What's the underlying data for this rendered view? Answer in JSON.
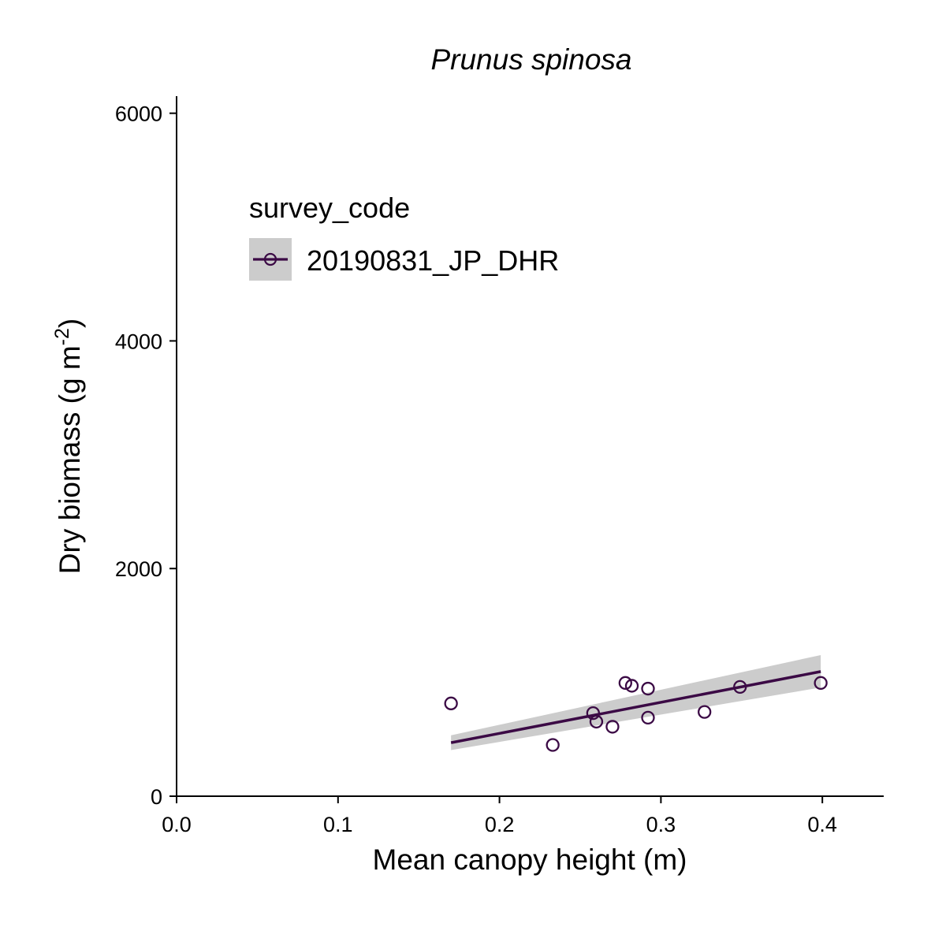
{
  "chart_data": {
    "type": "scatter",
    "title": "Prunus spinosa",
    "xlabel": "Mean canopy height (m)",
    "ylabel_main": "Dry biomass (g m",
    "ylabel_sup": "-2",
    "ylabel_close": ")",
    "xlim": [
      0.0,
      0.438
    ],
    "ylim": [
      0,
      6150
    ],
    "x_ticks": [
      0.0,
      0.1,
      0.2,
      0.3,
      0.4
    ],
    "x_tick_labels": [
      "0.0",
      "0.1",
      "0.2",
      "0.3",
      "0.4"
    ],
    "y_ticks": [
      0,
      2000,
      4000,
      6000
    ],
    "y_tick_labels": [
      "0",
      "2000",
      "4000",
      "6000"
    ],
    "legend": {
      "title": "survey_code",
      "position": "top-left",
      "entries": [
        "20190831_JP_DHR"
      ]
    },
    "series": [
      {
        "name": "20190831_JP_DHR",
        "color": "#3b0a45",
        "points": [
          {
            "x": 0.17,
            "y": 815
          },
          {
            "x": 0.233,
            "y": 450
          },
          {
            "x": 0.258,
            "y": 730
          },
          {
            "x": 0.26,
            "y": 655
          },
          {
            "x": 0.27,
            "y": 610
          },
          {
            "x": 0.278,
            "y": 995
          },
          {
            "x": 0.282,
            "y": 970
          },
          {
            "x": 0.292,
            "y": 945
          },
          {
            "x": 0.292,
            "y": 690
          },
          {
            "x": 0.327,
            "y": 740
          },
          {
            "x": 0.349,
            "y": 960
          },
          {
            "x": 0.399,
            "y": 995
          }
        ],
        "fit": {
          "method": "linear",
          "x": [
            0.17,
            0.399
          ],
          "y": [
            470,
            1095
          ],
          "ci_lower": [
            405,
            955
          ],
          "ci_upper": [
            535,
            1240
          ],
          "ci_color": "#cccccc"
        }
      }
    ],
    "grid": false
  }
}
